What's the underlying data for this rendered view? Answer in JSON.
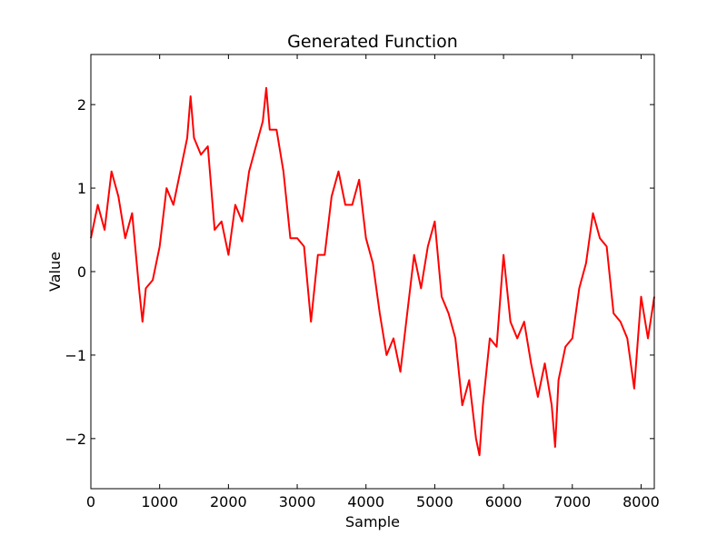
{
  "chart_data": {
    "type": "line",
    "title": "Generated Function",
    "xlabel": "Sample",
    "ylabel": "Value",
    "xlim": [
      0,
      8192
    ],
    "ylim": [
      -2.6,
      2.6
    ],
    "xticks": [
      0,
      1000,
      2000,
      3000,
      4000,
      5000,
      6000,
      7000,
      8000
    ],
    "xtick_labels": [
      "0",
      "1000",
      "2000",
      "3000",
      "4000",
      "5000",
      "6000",
      "7000",
      "8000"
    ],
    "yticks": [
      -2,
      -1,
      0,
      1,
      2
    ],
    "ytick_labels": [
      "−2",
      "−1",
      "0",
      "1",
      "2"
    ],
    "grid": false,
    "colors": {
      "line": "#ff0000"
    },
    "series": [
      {
        "x": [
          0,
          100,
          200,
          300,
          400,
          500,
          600,
          700,
          750,
          800,
          900,
          1000,
          1100,
          1200,
          1300,
          1400,
          1450,
          1500,
          1600,
          1700,
          1800,
          1900,
          2000,
          2100,
          2200,
          2300,
          2400,
          2500,
          2550,
          2600,
          2700,
          2800,
          2900,
          3000,
          3100,
          3200,
          3300,
          3400,
          3500,
          3600,
          3700,
          3800,
          3900,
          4000,
          4100,
          4200,
          4300,
          4400,
          4500,
          4600,
          4700,
          4800,
          4900,
          5000,
          5100,
          5200,
          5300,
          5400,
          5500,
          5600,
          5650,
          5700,
          5800,
          5900,
          6000,
          6100,
          6200,
          6300,
          6400,
          6500,
          6600,
          6700,
          6750,
          6800,
          6900,
          7000,
          7100,
          7200,
          7300,
          7400,
          7500,
          7600,
          7700,
          7800,
          7900,
          8000,
          8100,
          8192
        ],
        "y": [
          0.4,
          0.8,
          0.5,
          1.2,
          0.9,
          0.4,
          0.7,
          -0.2,
          -0.6,
          -0.2,
          -0.1,
          0.3,
          1.0,
          0.8,
          1.2,
          1.6,
          2.1,
          1.6,
          1.4,
          1.5,
          0.5,
          0.6,
          0.2,
          0.8,
          0.6,
          1.2,
          1.5,
          1.8,
          2.2,
          1.7,
          1.7,
          1.2,
          0.4,
          0.4,
          0.3,
          -0.6,
          0.2,
          0.2,
          0.9,
          1.2,
          0.8,
          0.8,
          1.1,
          0.4,
          0.1,
          -0.5,
          -1.0,
          -0.8,
          -1.2,
          -0.5,
          0.2,
          -0.2,
          0.3,
          0.6,
          -0.3,
          -0.5,
          -0.8,
          -1.6,
          -1.3,
          -2.0,
          -2.2,
          -1.6,
          -0.8,
          -0.9,
          0.2,
          -0.6,
          -0.8,
          -0.6,
          -1.1,
          -1.5,
          -1.1,
          -1.6,
          -2.1,
          -1.3,
          -0.9,
          -0.8,
          -0.2,
          0.1,
          0.7,
          0.4,
          0.3,
          -0.5,
          -0.6,
          -0.8,
          -1.4,
          -0.3,
          -0.8,
          -0.3
        ]
      }
    ]
  }
}
